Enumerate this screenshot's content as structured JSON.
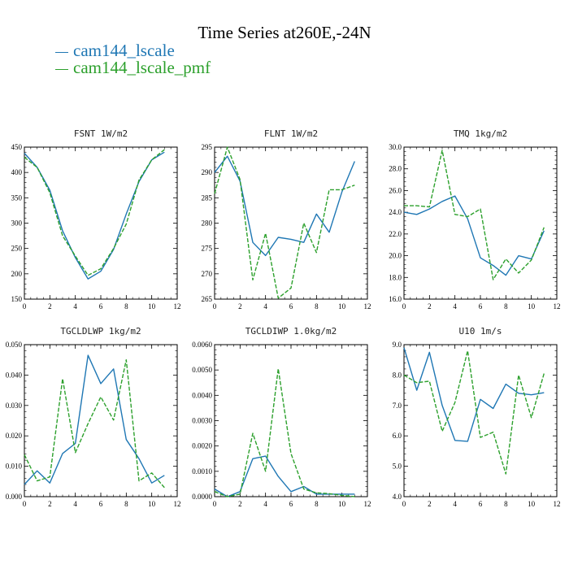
{
  "title": "Time Series at260E,-24N",
  "legend": [
    {
      "label": "cam144_lscale",
      "color": "#1f77b4"
    },
    {
      "label": "cam144_lscale_pmf",
      "color": "#2ca02c"
    }
  ],
  "chart_data": [
    {
      "type": "line",
      "title": "FSNT   1W/m2",
      "x": [
        0,
        1,
        2,
        3,
        4,
        5,
        6,
        7,
        8,
        9,
        10,
        11
      ],
      "xlim": [
        0,
        12
      ],
      "xticks": [
        "0",
        "2",
        "4",
        "6",
        "8",
        "10",
        "12"
      ],
      "ylim": [
        150,
        450
      ],
      "yticks": [
        "150",
        "200",
        "250",
        "300",
        "350",
        "400",
        "450"
      ],
      "series": [
        {
          "name": "cam144_lscale",
          "values": [
            438,
            410,
            365,
            285,
            232,
            190,
            205,
            248,
            318,
            382,
            425,
            440
          ]
        },
        {
          "name": "cam144_lscale_pmf",
          "values": [
            430,
            410,
            360,
            275,
            235,
            197,
            210,
            250,
            298,
            385,
            425,
            445
          ]
        }
      ]
    },
    {
      "type": "line",
      "title": "FLNT   1W/m2",
      "x": [
        0,
        1,
        2,
        3,
        4,
        5,
        6,
        7,
        8,
        9,
        10,
        11
      ],
      "xlim": [
        0,
        12
      ],
      "xticks": [
        "0",
        "2",
        "4",
        "6",
        "8",
        "10",
        "12"
      ],
      "ylim": [
        265,
        295
      ],
      "yticks": [
        "265",
        "270",
        "275",
        "280",
        "285",
        "290",
        "295"
      ],
      "series": [
        {
          "name": "cam144_lscale",
          "values": [
            290,
            293.2,
            288.3,
            276.2,
            273.6,
            277.2,
            276.8,
            276.2,
            281.8,
            278.2,
            286.2,
            292.2
          ]
        },
        {
          "name": "cam144_lscale_pmf",
          "values": [
            285.8,
            295,
            288.6,
            268.8,
            278,
            265.2,
            267.2,
            280,
            274.2,
            286.6,
            286.6,
            287.5
          ]
        }
      ]
    },
    {
      "type": "line",
      "title": "TMQ   1kg/m2",
      "x": [
        0,
        1,
        2,
        3,
        4,
        5,
        6,
        7,
        8,
        9,
        10,
        11
      ],
      "xlim": [
        0,
        12
      ],
      "xticks": [
        "0",
        "2",
        "4",
        "6",
        "8",
        "10",
        "12"
      ],
      "ylim": [
        16,
        30
      ],
      "yticks": [
        "16.0",
        "18.0",
        "20.0",
        "22.0",
        "24.0",
        "26.0",
        "28.0",
        "30.0"
      ],
      "series": [
        {
          "name": "cam144_lscale",
          "values": [
            24.0,
            23.8,
            24.3,
            25.0,
            25.5,
            23.4,
            19.8,
            19.1,
            18.2,
            20.0,
            19.7,
            22.3
          ]
        },
        {
          "name": "cam144_lscale_pmf",
          "values": [
            24.6,
            24.6,
            24.5,
            29.7,
            23.8,
            23.6,
            24.3,
            17.8,
            19.7,
            18.4,
            19.6,
            22.6
          ]
        }
      ]
    },
    {
      "type": "line",
      "title": "TGCLDLWP   1kg/m2",
      "x": [
        0,
        1,
        2,
        3,
        4,
        5,
        6,
        7,
        8,
        9,
        10,
        11
      ],
      "xlim": [
        0,
        12
      ],
      "xticks": [
        "0",
        "2",
        "4",
        "6",
        "8",
        "10",
        "12"
      ],
      "ylim": [
        0,
        0.05
      ],
      "yticks": [
        "0.000",
        "0.010",
        "0.020",
        "0.030",
        "0.040",
        "0.050"
      ],
      "series": [
        {
          "name": "cam144_lscale",
          "values": [
            0.004,
            0.0085,
            0.0045,
            0.0142,
            0.0175,
            0.0465,
            0.0372,
            0.042,
            0.0188,
            0.0125,
            0.0045,
            0.007
          ]
        },
        {
          "name": "cam144_lscale_pmf",
          "values": [
            0.0138,
            0.0052,
            0.0065,
            0.0388,
            0.0145,
            0.024,
            0.0328,
            0.0252,
            0.045,
            0.0052,
            0.0078,
            0.003
          ]
        }
      ]
    },
    {
      "type": "line",
      "title": "TGCLDIWP   1.0kg/m2",
      "x": [
        0,
        1,
        2,
        3,
        4,
        5,
        6,
        7,
        8,
        9,
        10,
        11
      ],
      "xlim": [
        0,
        12
      ],
      "xticks": [
        "0",
        "2",
        "4",
        "6",
        "8",
        "10",
        "12"
      ],
      "ylim": [
        0,
        0.006
      ],
      "yticks": [
        "0.0000",
        "0.0010",
        "0.0020",
        "0.0030",
        "0.0040",
        "0.0050",
        "0.0060"
      ],
      "series": [
        {
          "name": "cam144_lscale",
          "values": [
            0.0003,
            0.0,
            0.0002,
            0.0015,
            0.0016,
            0.0008,
            0.0002,
            0.0004,
            0.0001,
            0.0001,
            0.0001,
            0.0001
          ]
        },
        {
          "name": "cam144_lscale_pmf",
          "values": [
            0.0002,
            0.0,
            0.0001,
            0.0025,
            0.001,
            0.00505,
            0.0017,
            0.0003,
            0.00015,
            0.00012,
            5e-05,
            0.0
          ]
        }
      ]
    },
    {
      "type": "line",
      "title": "U10   1m/s",
      "x": [
        0,
        1,
        2,
        3,
        4,
        5,
        6,
        7,
        8,
        9,
        10,
        11
      ],
      "xlim": [
        0,
        12
      ],
      "xticks": [
        "0",
        "2",
        "4",
        "6",
        "8",
        "10",
        "12"
      ],
      "ylim": [
        4,
        9
      ],
      "yticks": [
        "4.0",
        "5.0",
        "6.0",
        "7.0",
        "8.0",
        "9.0"
      ],
      "series": [
        {
          "name": "cam144_lscale",
          "values": [
            8.9,
            7.5,
            8.75,
            7.0,
            5.85,
            5.82,
            7.2,
            6.9,
            7.7,
            7.4,
            7.35,
            7.42
          ]
        },
        {
          "name": "cam144_lscale_pmf",
          "values": [
            8.0,
            7.75,
            7.8,
            6.15,
            7.1,
            8.8,
            5.95,
            6.12,
            4.75,
            8.0,
            6.6,
            8.05
          ]
        }
      ]
    }
  ]
}
